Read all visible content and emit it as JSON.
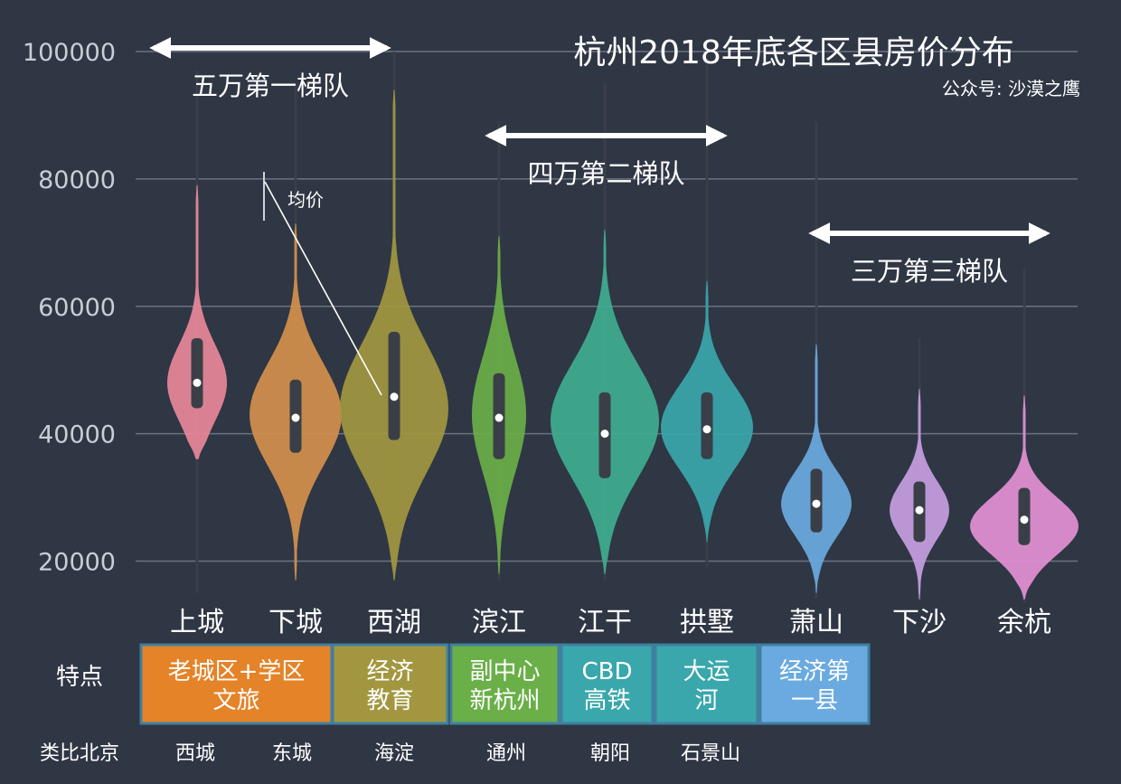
{
  "chart_data": {
    "type": "violin",
    "title": "杭州2018年底各区县房价分布",
    "subtitle": "公众号: 沙漠之鹰",
    "ylabel": "",
    "ylim": [
      14000,
      101500
    ],
    "yticks": [
      20000,
      40000,
      60000,
      80000,
      100000
    ],
    "grid": true,
    "categories": [
      "上城",
      "下城",
      "西湖",
      "滨江",
      "江干",
      "拱墅",
      "萧山",
      "下沙",
      "余杭"
    ],
    "series": [
      {
        "category": "上城",
        "color": "#e8889a",
        "median": 48000,
        "q1": 44000,
        "q3": 55000,
        "whisker_low": 15000,
        "whisker_high": 97000,
        "violin_min": 36000,
        "violin_max": 79000,
        "mode": 48000,
        "width": 0.55,
        "halfwidth": 6000
      },
      {
        "category": "下城",
        "color": "#d4904c",
        "median": 42500,
        "q1": 37000,
        "q3": 48500,
        "whisker_low": 17000,
        "whisker_high": 95000,
        "violin_min": 17000,
        "violin_max": 73000,
        "mode": 43000,
        "width": 0.85,
        "halfwidth": 8000
      },
      {
        "category": "西湖",
        "color": "#a29740",
        "median": 45800,
        "q1": 39000,
        "q3": 56000,
        "whisker_low": 17000,
        "whisker_high": 100000,
        "violin_min": 17000,
        "violin_max": 94000,
        "mode": 44000,
        "width": 1.0,
        "halfwidth": 10000
      },
      {
        "category": "滨江",
        "color": "#6aaf48",
        "median": 42500,
        "q1": 36000,
        "q3": 49500,
        "whisker_low": 17000,
        "whisker_high": 89000,
        "violin_min": 18000,
        "violin_max": 71000,
        "mode": 43000,
        "width": 0.5,
        "halfwidth": 9000
      },
      {
        "category": "江干",
        "color": "#3fae90",
        "median": 40000,
        "q1": 33000,
        "q3": 46500,
        "whisker_low": 17000,
        "whisker_high": 95000,
        "violin_min": 18000,
        "violin_max": 72000,
        "mode": 42000,
        "width": 1.0,
        "halfwidth": 9000
      },
      {
        "category": "拱墅",
        "color": "#3aa7ac",
        "median": 40700,
        "q1": 36000,
        "q3": 46500,
        "whisker_low": 19000,
        "whisker_high": 98000,
        "violin_min": 23000,
        "violin_max": 64000,
        "mode": 41000,
        "width": 0.85,
        "halfwidth": 6500
      },
      {
        "category": "萧山",
        "color": "#6aaae0",
        "median": 29000,
        "q1": 24500,
        "q3": 34500,
        "whisker_low": 14000,
        "whisker_high": 89000,
        "violin_min": 15000,
        "violin_max": 54000,
        "mode": 29000,
        "width": 0.65,
        "halfwidth": 5000
      },
      {
        "category": "下沙",
        "color": "#c89ee2",
        "median": 28000,
        "q1": 23000,
        "q3": 32500,
        "whisker_low": 14000,
        "whisker_high": 55000,
        "violin_min": 14000,
        "violin_max": 47000,
        "mode": 28000,
        "width": 0.55,
        "halfwidth": 4500
      },
      {
        "category": "余杭",
        "color": "#e490d4",
        "median": 26500,
        "q1": 22500,
        "q3": 31500,
        "whisker_low": 13500,
        "whisker_high": 66000,
        "violin_min": 14000,
        "violin_max": 46000,
        "mode": 25500,
        "width": 1.0,
        "halfwidth": 4500
      }
    ],
    "tiers": [
      {
        "label": "五万第一梯队",
        "from": "上城",
        "to": "西湖"
      },
      {
        "label": "四万第二梯队",
        "from": "滨江",
        "to": "拱墅"
      },
      {
        "label": "三万第三梯队",
        "from": "萧山",
        "to": "余杭"
      }
    ],
    "annotation": {
      "text": "均价",
      "points_to": "西湖"
    }
  },
  "features": {
    "row_label": "特点",
    "items": [
      {
        "lines": [
          "老城区+学区",
          "文旅"
        ],
        "color": "#e58328",
        "span": [
          "上城",
          "下城"
        ]
      },
      {
        "lines": [
          "经济",
          "教育"
        ],
        "color": "#a29740",
        "span": [
          "西湖",
          "西湖"
        ]
      },
      {
        "lines": [
          "副中心",
          "新杭州"
        ],
        "color": "#6aaf48",
        "span": [
          "滨江",
          "滨江"
        ]
      },
      {
        "lines": [
          "CBD",
          "高铁"
        ],
        "color": "#3aa7ac",
        "span": [
          "江干",
          "江干"
        ]
      },
      {
        "lines": [
          "大运",
          "河"
        ],
        "color": "#3aa7ac",
        "span": [
          "拱墅",
          "拱墅"
        ]
      },
      {
        "lines": [
          "经济第",
          "一县"
        ],
        "color": "#6aaae0",
        "span": [
          "萧山",
          "萧山"
        ]
      }
    ]
  },
  "beijing": {
    "row_label": "类比北京",
    "items": [
      "西城",
      "东城",
      "海淀",
      "通州",
      "朝阳",
      "石景山"
    ]
  }
}
